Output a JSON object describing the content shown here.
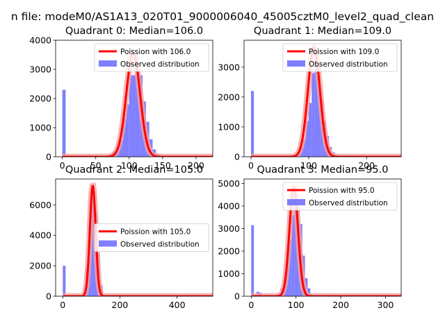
{
  "figure_title": "n file: modeM0/AS1A13_020T01_9000006040_45005cztM0_level2_quad_clean",
  "colors": {
    "fit": "#ff0000",
    "fit_halo": "#f4a3a3",
    "hist": "#7f7fff",
    "axis": "#000000"
  },
  "chart_data": [
    {
      "type": "bar",
      "title": "Quadrant 0: Median=106.0",
      "xlim": [
        -10,
        225
      ],
      "ylim": [
        0,
        4000
      ],
      "xticks": [
        0,
        50,
        100,
        150,
        200
      ],
      "yticks": [
        0,
        1000,
        2000,
        3000,
        4000
      ],
      "bin_width": 5,
      "hist": [
        [
          0,
          2300
        ],
        [
          65,
          20
        ],
        [
          70,
          80
        ],
        [
          75,
          180
        ],
        [
          80,
          330
        ],
        [
          85,
          600
        ],
        [
          90,
          1300
        ],
        [
          95,
          1800
        ],
        [
          100,
          2800
        ],
        [
          105,
          2800
        ],
        [
          110,
          3400
        ],
        [
          115,
          2800
        ],
        [
          120,
          1900
        ],
        [
          125,
          1200
        ],
        [
          130,
          600
        ],
        [
          135,
          250
        ],
        [
          140,
          100
        ],
        [
          145,
          30
        ]
      ],
      "poisson_lambda": 106.0,
      "legend": [
        "Poission with 106.0",
        "Observed distribution"
      ],
      "legend_loc": "upper right"
    },
    {
      "type": "bar",
      "title": "Quadrant 1: Median=109.0",
      "xlim": [
        -12,
        260
      ],
      "ylim": [
        0,
        3900
      ],
      "xticks": [
        0,
        100,
        200
      ],
      "yticks": [
        0,
        1000,
        2000,
        3000
      ],
      "bin_width": 5,
      "hist": [
        [
          0,
          2200
        ],
        [
          70,
          30
        ],
        [
          75,
          80
        ],
        [
          80,
          150
        ],
        [
          85,
          350
        ],
        [
          90,
          600
        ],
        [
          95,
          1200
        ],
        [
          100,
          1800
        ],
        [
          105,
          2800
        ],
        [
          110,
          3500
        ],
        [
          115,
          2700
        ],
        [
          120,
          1900
        ],
        [
          125,
          1200
        ],
        [
          130,
          700
        ],
        [
          135,
          330
        ],
        [
          140,
          150
        ],
        [
          145,
          50
        ]
      ],
      "poisson_lambda": 109.0,
      "legend": [
        "Poission with 109.0",
        "Observed distribution"
      ],
      "legend_loc": "upper right"
    },
    {
      "type": "bar",
      "title": "Quadrant 2: Median=105.0",
      "xlim": [
        -25,
        525
      ],
      "ylim": [
        0,
        7700
      ],
      "xticks": [
        0,
        200,
        400
      ],
      "yticks": [
        0,
        2000,
        4000,
        6000
      ],
      "bin_width": 10,
      "hist": [
        [
          0,
          2000
        ],
        [
          60,
          50
        ],
        [
          70,
          250
        ],
        [
          80,
          1800
        ],
        [
          90,
          4600
        ],
        [
          100,
          6900
        ],
        [
          110,
          5500
        ],
        [
          120,
          2800
        ],
        [
          130,
          700
        ],
        [
          140,
          80
        ]
      ],
      "poisson_lambda": 105.0,
      "legend": [
        "Poission with 105.0",
        "Observed distribution"
      ],
      "legend_loc": "center right"
    },
    {
      "type": "bar",
      "title": "Quadrant 3: Median=95.0",
      "xlim": [
        -16,
        335
      ],
      "ylim": [
        0,
        5200
      ],
      "xticks": [
        0,
        100,
        200,
        300
      ],
      "yticks": [
        0,
        1000,
        2000,
        3000,
        4000,
        5000
      ],
      "bin_width": 6,
      "hist": [
        [
          0,
          3150
        ],
        [
          12,
          200
        ],
        [
          18,
          150
        ],
        [
          54,
          50
        ],
        [
          60,
          100
        ],
        [
          66,
          350
        ],
        [
          72,
          800
        ],
        [
          78,
          1500
        ],
        [
          84,
          2500
        ],
        [
          90,
          3600
        ],
        [
          96,
          4600
        ],
        [
          102,
          4100
        ],
        [
          108,
          3200
        ],
        [
          114,
          1800
        ],
        [
          120,
          800
        ],
        [
          126,
          350
        ],
        [
          132,
          100
        ]
      ],
      "poisson_lambda": 95.0,
      "legend": [
        "Poission with 95.0",
        "Observed distribution"
      ],
      "legend_loc": "upper right"
    }
  ]
}
